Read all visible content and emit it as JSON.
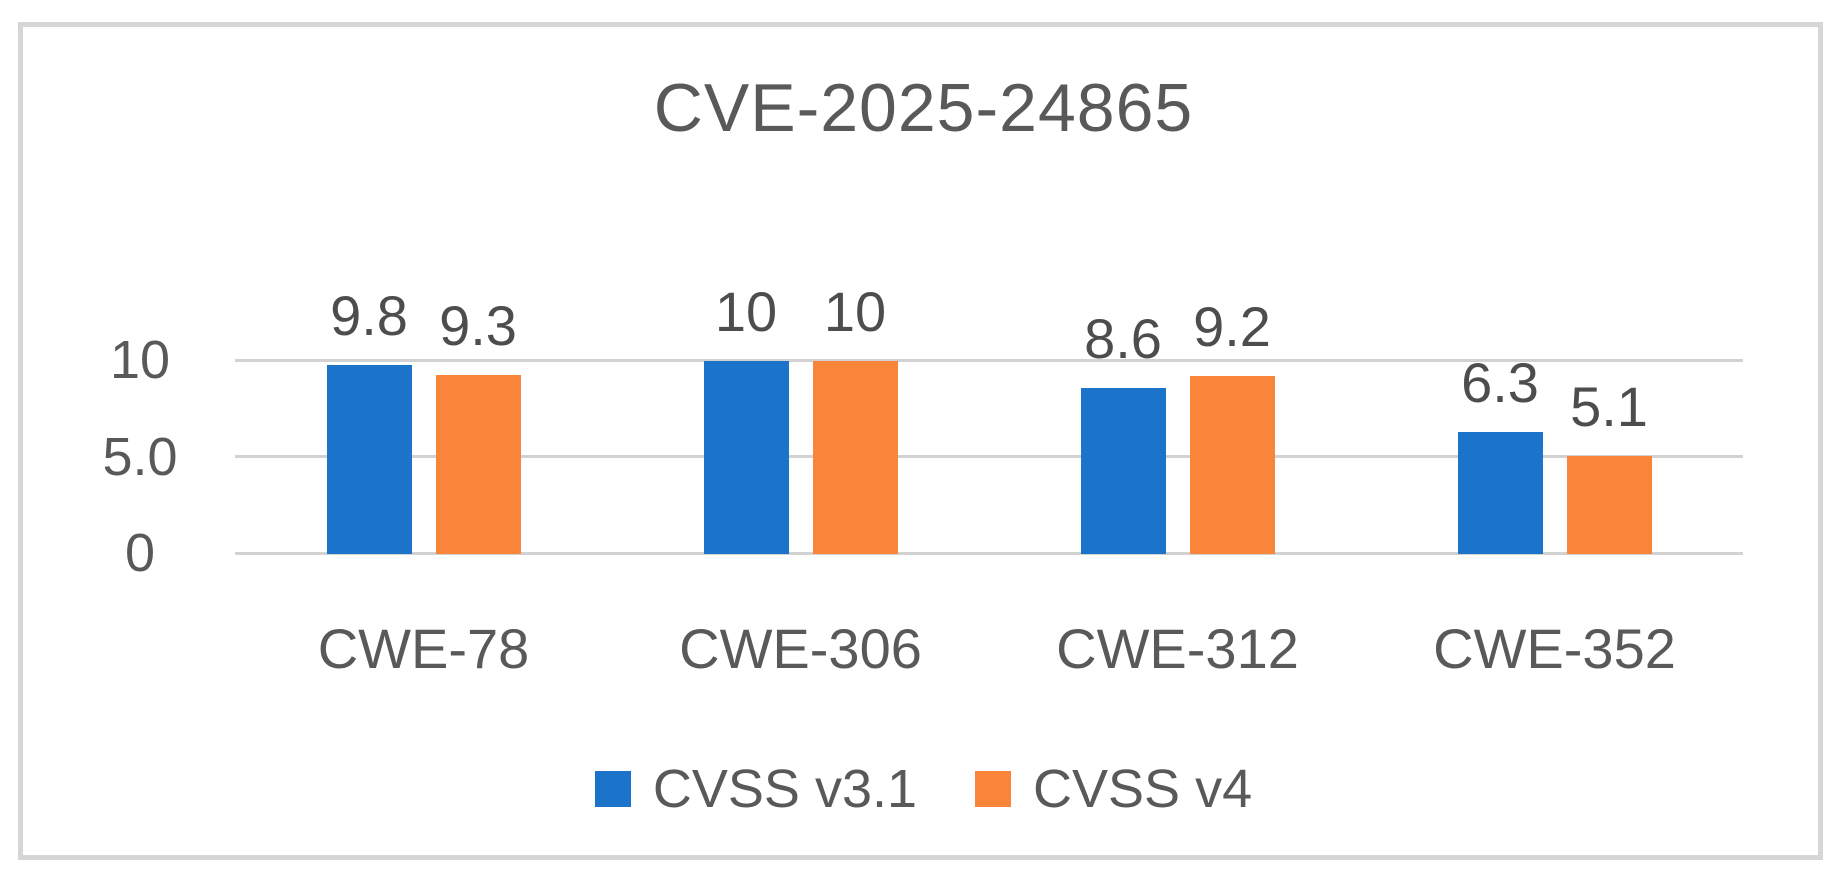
{
  "chart_data": {
    "type": "bar",
    "title": "CVE-2025-24865",
    "categories": [
      "CWE-78",
      "CWE-306",
      "CWE-312",
      "CWE-352"
    ],
    "series": [
      {
        "name": "CVSS v3.1",
        "color": "#1b73ca",
        "values": [
          9.8,
          10,
          8.6,
          6.3
        ]
      },
      {
        "name": "CVSS v4",
        "color": "#f8853a",
        "values": [
          9.3,
          10,
          9.2,
          5.1
        ]
      }
    ],
    "yticks": [
      {
        "value": 10,
        "label": "10"
      },
      {
        "value": 5,
        "label": "5.0"
      },
      {
        "value": 0,
        "label": "0"
      }
    ],
    "ylim": [
      0,
      10
    ],
    "grid": true,
    "data_labels": true,
    "legend_position": "bottom"
  },
  "style": {
    "background": "#ffffff",
    "frame_border_color": "#d6d6d6",
    "gridline_color": "#d2d2d2",
    "title_color": "#595959",
    "value_label_color": "#4d4d4d",
    "tick_label_color": "#595959",
    "category_label_color": "#595959"
  }
}
